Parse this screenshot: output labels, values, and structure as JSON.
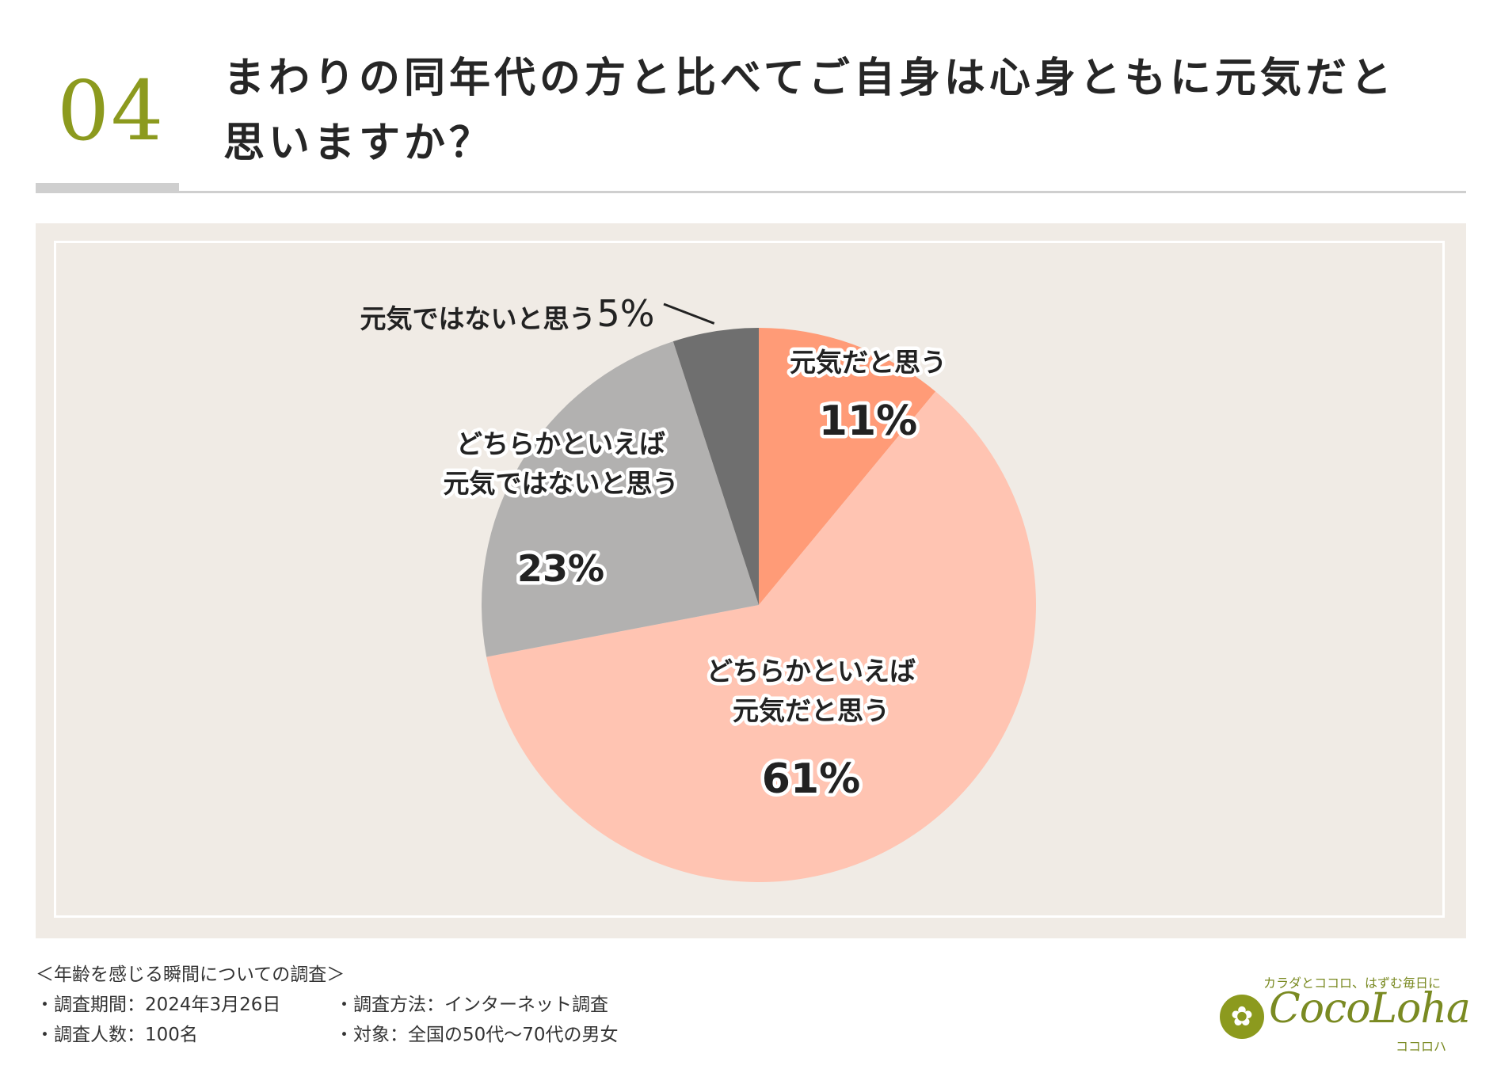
{
  "header": {
    "question_number": "04",
    "title_line1": "まわりの同年代の方と比べてご自身は心身ともに元気だと",
    "title_line2": "思いますか？"
  },
  "chart_data": {
    "type": "pie",
    "start": "top, clockwise",
    "slices": [
      {
        "label_lines": [
          "元気だと思う"
        ],
        "value": 11,
        "value_label": "11%",
        "color": "#ff9b77"
      },
      {
        "label_lines": [
          "どちらかといえば",
          "元気だと思う"
        ],
        "value": 61,
        "value_label": "61%",
        "color": "#ffc4b2"
      },
      {
        "label_lines": [
          "どちらかといえば",
          "元気ではないと思う"
        ],
        "value": 23,
        "value_label": "23%",
        "color": "#b2b1b0"
      },
      {
        "label_lines": [
          "元気ではないと思う"
        ],
        "value": 5,
        "value_label": "5%",
        "color": "#6f6f6f"
      }
    ]
  },
  "footer": {
    "survey_title": "＜年齢を感じる瞬間についての調査＞",
    "period": "・調査期間：2024年3月26日",
    "method": "・調査方法：インターネット調査",
    "respondents": "・調査人数：100名",
    "target": "・対象：全国の50代〜70代の男女"
  },
  "brand": {
    "tagline": "カラダとココロ、はずむ毎日に",
    "logo_glyph": "✿",
    "name": "CocoLoha",
    "kana": "ココロハ"
  }
}
